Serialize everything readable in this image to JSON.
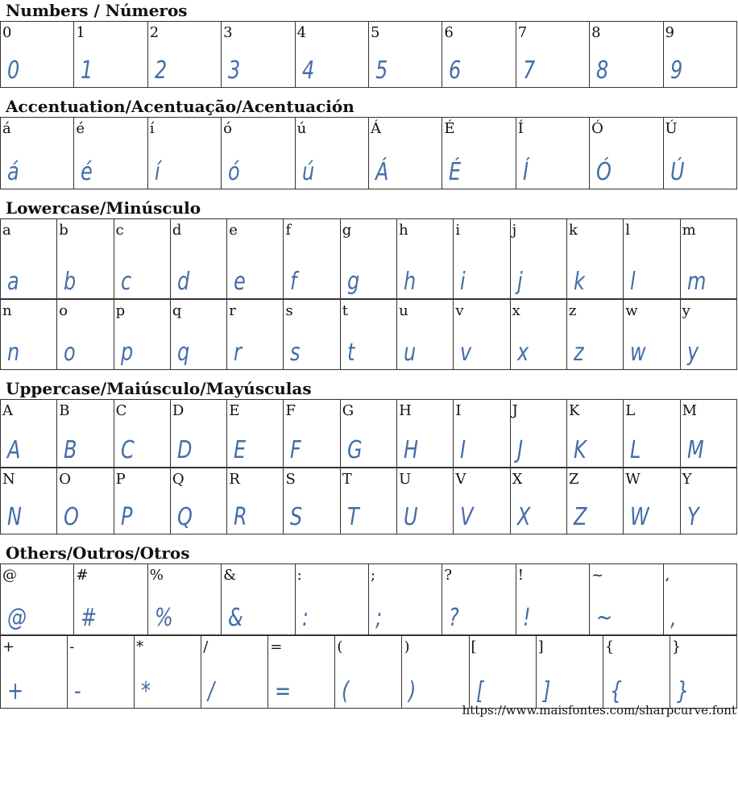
{
  "colors": {
    "glyph": "#2f5e9e",
    "border": "#333333"
  },
  "sections": [
    {
      "title": "Numbers / Números",
      "rows": [
        [
          "0",
          "1",
          "2",
          "3",
          "4",
          "5",
          "6",
          "7",
          "8",
          "9"
        ]
      ],
      "heights": [
        82
      ]
    },
    {
      "title": "Accentuation/Acentuação/Acentuación",
      "rows": [
        [
          "á",
          "é",
          "í",
          "ó",
          "ú",
          "Á",
          "É",
          "Í",
          "Ó",
          "Ú"
        ]
      ],
      "heights": [
        89
      ]
    },
    {
      "title": "Lowercase/Minúsculo",
      "rows": [
        [
          "a",
          "b",
          "c",
          "d",
          "e",
          "f",
          "g",
          "h",
          "i",
          "j",
          "k",
          "l",
          "m"
        ],
        [
          "n",
          "o",
          "p",
          "q",
          "r",
          "s",
          "t",
          "u",
          "v",
          "x",
          "z",
          "w",
          "y"
        ]
      ],
      "heights": [
        99,
        87
      ]
    },
    {
      "title": "Uppercase/Maiúsculo/Mayúsculas",
      "rows": [
        [
          "A",
          "B",
          "C",
          "D",
          "E",
          "F",
          "G",
          "H",
          "I",
          "J",
          "K",
          "L",
          "M"
        ],
        [
          "N",
          "O",
          "P",
          "Q",
          "R",
          "S",
          "T",
          "U",
          "V",
          "X",
          "Z",
          "W",
          "Y"
        ]
      ],
      "heights": [
        84,
        82
      ]
    },
    {
      "title": "Others/Outros/Otros",
      "rows": [
        [
          "@",
          "#",
          "%",
          "&",
          ":",
          ";",
          "?",
          "!",
          "~",
          ","
        ],
        [
          "+",
          "-",
          "*",
          "/",
          "=",
          "(",
          ")",
          "[",
          "]",
          "{",
          "}"
        ]
      ],
      "heights": [
        88,
        90
      ]
    }
  ],
  "footer": {
    "url": "https://www.maisfontes.com/sharpcurve.font"
  }
}
